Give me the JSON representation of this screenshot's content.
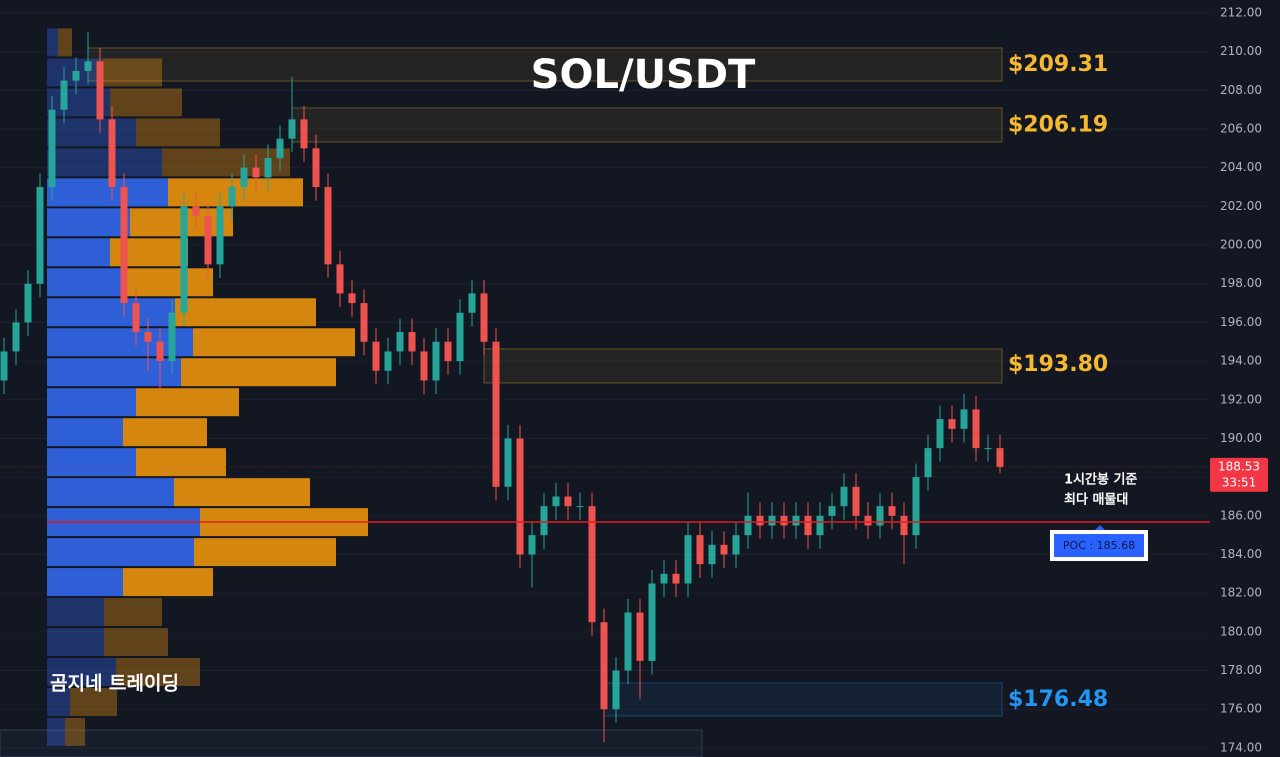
{
  "chart_data": {
    "type": "candlestick",
    "title": "SOL/USDT",
    "watermark": "곰지네 트레이딩",
    "annotation": [
      "1시간봉 기준",
      "최다 매물대"
    ],
    "ylim": [
      173.53,
      212.67
    ],
    "yticks": [
      {
        "value": 174,
        "label": "174.00"
      },
      {
        "value": 176,
        "label": "176.00"
      },
      {
        "value": 178,
        "label": "178.00"
      },
      {
        "value": 180,
        "label": "180.00"
      },
      {
        "value": 182,
        "label": "182.00"
      },
      {
        "value": 184,
        "label": "184.00"
      },
      {
        "value": 186,
        "label": "186.00"
      },
      {
        "value": 188,
        "label": "188.00"
      },
      {
        "value": 190,
        "label": "190.00"
      },
      {
        "value": 192,
        "label": "192.00"
      },
      {
        "value": 194,
        "label": "194.00"
      },
      {
        "value": 196,
        "label": "196.00"
      },
      {
        "value": 198,
        "label": "198.00"
      },
      {
        "value": 200,
        "label": "200.00"
      },
      {
        "value": 202,
        "label": "202.00"
      },
      {
        "value": 204,
        "label": "204.00"
      },
      {
        "value": 206,
        "label": "206.00"
      },
      {
        "value": 208,
        "label": "208.00"
      },
      {
        "value": 210,
        "label": "210.00"
      },
      {
        "value": 212,
        "label": "212.00"
      }
    ],
    "grid": true,
    "up_color": "#26a69a",
    "down_color": "#ef5350",
    "open": [
      193,
      194.5,
      196,
      198,
      203,
      207,
      208.5,
      209,
      209.5,
      206.5,
      203,
      197,
      195.5,
      195,
      194,
      196.5,
      202,
      201.5,
      199,
      202,
      203,
      204,
      203.5,
      204.5,
      205.5,
      206.5,
      205,
      203,
      199,
      197.5,
      197,
      195,
      193.5,
      194.5,
      195.5,
      194.5,
      193,
      195,
      194,
      196.5,
      197.5,
      195,
      187.5,
      190,
      184,
      185,
      186.5,
      187,
      186.5,
      186.5,
      180.5,
      176,
      178,
      181,
      178.5,
      182.5,
      183,
      182.5,
      185,
      183.5,
      184.5,
      184,
      185,
      186,
      185.5,
      186,
      185.5,
      186,
      185,
      186,
      186.5,
      187.5,
      186,
      185.5,
      186.5,
      186,
      185,
      188,
      189.5,
      191,
      190.5,
      191.5,
      189.5,
      189.5
    ],
    "high": [
      195.2,
      196.7,
      198.7,
      203.7,
      207.7,
      209.2,
      209.7,
      211.0,
      210.2,
      207.2,
      203.7,
      197.7,
      196.2,
      195.7,
      197.2,
      202.7,
      202.7,
      202.2,
      202.7,
      203.7,
      204.7,
      204.7,
      205.2,
      206.2,
      208.7,
      207.2,
      205.7,
      203.7,
      199.7,
      198.2,
      197.7,
      195.7,
      195.2,
      196.2,
      196.2,
      195.2,
      195.7,
      195.7,
      197.2,
      198.2,
      198.2,
      195.7,
      190.7,
      190.7,
      185.7,
      187.2,
      187.7,
      187.7,
      187.2,
      187.2,
      181.2,
      178.7,
      181.7,
      181.7,
      183.2,
      183.7,
      183.7,
      185.7,
      185.7,
      185.2,
      185.2,
      185.7,
      187.2,
      186.7,
      186.7,
      186.7,
      186.7,
      186.7,
      186.7,
      187.2,
      188.2,
      188.2,
      186.7,
      187.2,
      187.2,
      186.7,
      188.7,
      190.2,
      191.7,
      191.7,
      192.3,
      192.2,
      190.2,
      190.2
    ],
    "low": [
      192.3,
      193.8,
      195.3,
      197.3,
      202.3,
      206.3,
      207.8,
      208.3,
      205.8,
      202.3,
      196.3,
      194.8,
      193.5,
      192.5,
      193.3,
      195.8,
      200.8,
      198.3,
      198.3,
      201.3,
      202.3,
      202.8,
      202.8,
      203.8,
      204.8,
      204.3,
      202.3,
      198.3,
      196.8,
      196.3,
      194.3,
      192.8,
      192.8,
      193.8,
      193.8,
      192.3,
      192.3,
      193.3,
      193.3,
      195.8,
      194.3,
      186.8,
      186.8,
      183.3,
      182.3,
      184.3,
      185.8,
      185.8,
      185.8,
      179.8,
      174.3,
      175.3,
      177.3,
      176.5,
      177.8,
      181.8,
      181.8,
      181.8,
      182.8,
      182.8,
      183.3,
      183.3,
      184.3,
      184.8,
      184.8,
      184.8,
      184.8,
      184.3,
      184.3,
      185.3,
      185.8,
      185.3,
      184.8,
      184.8,
      185.3,
      183.5,
      184.3,
      187.3,
      188.8,
      189.8,
      189.8,
      188.8,
      188.8,
      188.2
    ],
    "close": [
      194.5,
      196,
      198,
      203,
      207,
      208.5,
      209,
      209.5,
      206.5,
      203,
      197,
      195.5,
      195,
      194,
      196.5,
      202,
      201.5,
      199,
      202,
      203,
      204,
      203.5,
      204.5,
      205.5,
      206.5,
      205,
      203,
      199,
      197.5,
      197,
      195,
      193.5,
      194.5,
      195.5,
      194.5,
      193,
      195,
      194,
      196.5,
      197.5,
      195,
      187.5,
      190,
      184,
      185,
      186.5,
      187,
      186.5,
      186.5,
      180.5,
      176,
      178,
      181,
      178.5,
      182.5,
      183,
      182.5,
      185,
      183.5,
      184.5,
      184,
      185,
      186,
      185.5,
      186,
      185.5,
      186,
      185,
      186,
      186.5,
      187.5,
      186,
      185.5,
      186.5,
      186,
      185,
      188,
      189.5,
      191,
      190.5,
      191.5,
      189.5,
      189.5,
      188.53
    ],
    "volume_profile": {
      "bins": [
        174.05,
        175.6,
        177.15,
        178.7,
        180.25,
        181.8,
        183.35,
        184.9,
        186.45,
        188.0,
        189.55,
        191.1,
        192.65,
        194.2,
        195.75,
        197.3,
        198.85,
        200.4,
        201.95,
        203.5,
        205.05,
        206.6,
        208.15,
        209.7,
        211.25
      ],
      "buy": [
        18,
        23,
        69,
        57,
        57,
        76,
        147,
        153,
        127,
        89,
        76,
        89,
        134,
        146,
        128,
        78,
        63,
        83,
        121,
        115,
        89,
        63,
        56,
        11
      ],
      "sell": [
        20,
        47,
        84,
        64,
        58,
        90,
        142,
        168,
        136,
        90,
        84,
        103,
        155,
        162,
        141,
        88,
        78,
        103,
        135,
        128,
        84,
        72,
        59,
        14
      ],
      "buy_color": "#2f5fd6",
      "sell_color": "#d4860f",
      "value_area": [
        181.8,
        203.5
      ]
    },
    "zones": [
      {
        "low": 208.48,
        "high": 210.19,
        "from": 7,
        "value": 209.31,
        "label": "$209.31",
        "color": "#f5b82e"
      },
      {
        "low": 205.33,
        "high": 207.09,
        "from": 24,
        "value": 206.19,
        "label": "$206.19",
        "color": "#f5b82e"
      },
      {
        "low": 192.87,
        "high": 194.63,
        "from": 40,
        "value": 193.8,
        "label": "$193.80",
        "color": "#f5b82e"
      },
      {
        "low": 175.65,
        "high": 177.36,
        "from": 50,
        "value": 176.48,
        "label": "$176.48",
        "color": "#2196f3"
      }
    ],
    "poc": {
      "value": 185.68,
      "label": "POC : 185.68",
      "color": "#e01e1e"
    },
    "last_price": {
      "value": 188.53,
      "countdown": "33:51",
      "color": "#f23645"
    }
  }
}
